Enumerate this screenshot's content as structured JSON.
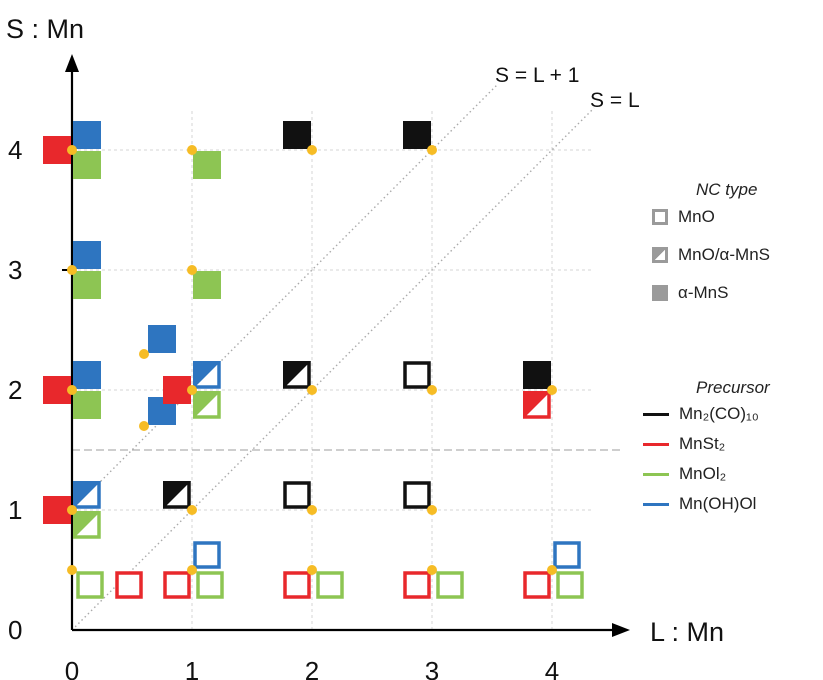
{
  "chart_data": {
    "type": "scatter",
    "title": "",
    "xlabel": "L : Mn",
    "ylabel": "S : Mn",
    "xlim": [
      0,
      4.5
    ],
    "ylim": [
      0,
      4.5
    ],
    "xticks": [
      "0",
      "1",
      "2",
      "3",
      "4"
    ],
    "yticks": [
      "0",
      "1",
      "2",
      "3",
      "4"
    ],
    "grid": true,
    "diagonal_labels": [
      "S = L + 1",
      "S = L"
    ],
    "colors": {
      "Mn2(CO)10": "#111111",
      "MnSt2": "#e8282c",
      "MnOl2": "#8dc553",
      "Mn(OH)Ol": "#2e75c0",
      "dot": "#f6bc25",
      "nc_legend": "#9a9a9a"
    },
    "nc_type_legend": {
      "title": "NC type",
      "items": [
        {
          "label": "MnO",
          "style": "open"
        },
        {
          "label": "MnO/α-MnS",
          "style": "half"
        },
        {
          "label": "α-MnS",
          "style": "filled"
        }
      ]
    },
    "precursor_legend": {
      "title": "Precursor",
      "items": [
        {
          "label": "Mn₂(CO)₁₀",
          "key": "Mn2(CO)10"
        },
        {
          "label": "MnSt₂",
          "key": "MnSt2"
        },
        {
          "label": "MnOl₂",
          "key": "MnOl2"
        },
        {
          "label": "Mn(OH)Ol",
          "key": "Mn(OH)Ol"
        }
      ]
    },
    "points": [
      {
        "L": 0,
        "S": 4,
        "precursor": "MnSt2",
        "nc": "filled"
      },
      {
        "L": 0,
        "S": 4,
        "precursor": "Mn(OH)Ol",
        "nc": "filled"
      },
      {
        "L": 0,
        "S": 4,
        "precursor": "MnOl2",
        "nc": "filled"
      },
      {
        "L": 1,
        "S": 4,
        "precursor": "MnOl2",
        "nc": "filled"
      },
      {
        "L": 2,
        "S": 4,
        "precursor": "Mn2(CO)10",
        "nc": "filled"
      },
      {
        "L": 3,
        "S": 4,
        "precursor": "Mn2(CO)10",
        "nc": "filled"
      },
      {
        "L": 0,
        "S": 3,
        "precursor": "Mn(OH)Ol",
        "nc": "filled"
      },
      {
        "L": 0,
        "S": 3,
        "precursor": "MnOl2",
        "nc": "filled"
      },
      {
        "L": 1,
        "S": 3,
        "precursor": "MnOl2",
        "nc": "filled"
      },
      {
        "L": 0.6,
        "S": 2.3,
        "precursor": "Mn(OH)Ol",
        "nc": "filled"
      },
      {
        "L": 0,
        "S": 2,
        "precursor": "MnSt2",
        "nc": "filled"
      },
      {
        "L": 0,
        "S": 2,
        "precursor": "Mn(OH)Ol",
        "nc": "filled"
      },
      {
        "L": 0,
        "S": 2,
        "precursor": "MnOl2",
        "nc": "filled"
      },
      {
        "L": 0.6,
        "S": 1.7,
        "precursor": "Mn(OH)Ol",
        "nc": "filled"
      },
      {
        "L": 1,
        "S": 2,
        "precursor": "MnSt2",
        "nc": "filled"
      },
      {
        "L": 1,
        "S": 2,
        "precursor": "Mn(OH)Ol",
        "nc": "half"
      },
      {
        "L": 1,
        "S": 2,
        "precursor": "MnOl2",
        "nc": "half"
      },
      {
        "L": 2,
        "S": 2,
        "precursor": "Mn2(CO)10",
        "nc": "half"
      },
      {
        "L": 3,
        "S": 2,
        "precursor": "Mn2(CO)10",
        "nc": "open"
      },
      {
        "L": 4,
        "S": 2,
        "precursor": "Mn2(CO)10",
        "nc": "filled"
      },
      {
        "L": 4,
        "S": 2,
        "precursor": "MnSt2",
        "nc": "half"
      },
      {
        "L": 0,
        "S": 1,
        "precursor": "MnSt2",
        "nc": "filled"
      },
      {
        "L": 0,
        "S": 1,
        "precursor": "Mn(OH)Ol",
        "nc": "half"
      },
      {
        "L": 0,
        "S": 1,
        "precursor": "MnOl2",
        "nc": "half"
      },
      {
        "L": 1,
        "S": 1,
        "precursor": "Mn2(CO)10",
        "nc": "half"
      },
      {
        "L": 2,
        "S": 1,
        "precursor": "Mn2(CO)10",
        "nc": "open"
      },
      {
        "L": 3,
        "S": 1,
        "precursor": "Mn2(CO)10",
        "nc": "open"
      },
      {
        "L": 0,
        "S": 0.5,
        "precursor": "MnOl2",
        "nc": "open"
      },
      {
        "L": 0.6,
        "S": 0.5,
        "precursor": "MnSt2",
        "nc": "open"
      },
      {
        "L": 1,
        "S": 0.5,
        "precursor": "MnSt2",
        "nc": "open"
      },
      {
        "L": 1,
        "S": 0.5,
        "precursor": "Mn(OH)Ol",
        "nc": "open"
      },
      {
        "L": 1,
        "S": 0.5,
        "precursor": "MnOl2",
        "nc": "open"
      },
      {
        "L": 2,
        "S": 0.5,
        "precursor": "MnSt2",
        "nc": "open"
      },
      {
        "L": 2,
        "S": 0.5,
        "precursor": "MnOl2",
        "nc": "open"
      },
      {
        "L": 3,
        "S": 0.5,
        "precursor": "MnSt2",
        "nc": "open"
      },
      {
        "L": 3,
        "S": 0.5,
        "precursor": "MnOl2",
        "nc": "open"
      },
      {
        "L": 4,
        "S": 0.5,
        "precursor": "MnSt2",
        "nc": "open"
      },
      {
        "L": 4,
        "S": 0.5,
        "precursor": "Mn(OH)Ol",
        "nc": "open"
      },
      {
        "L": 4,
        "S": 0.5,
        "precursor": "MnOl2",
        "nc": "open"
      }
    ],
    "dots": [
      [
        0,
        4
      ],
      [
        1,
        4
      ],
      [
        2,
        4
      ],
      [
        3,
        4
      ],
      [
        0,
        3
      ],
      [
        1,
        3
      ],
      [
        0.6,
        2.3
      ],
      [
        0,
        2
      ],
      [
        1,
        2
      ],
      [
        2,
        2
      ],
      [
        3,
        2
      ],
      [
        4,
        2
      ],
      [
        0.6,
        1.7
      ],
      [
        0,
        1
      ],
      [
        1,
        1
      ],
      [
        2,
        1
      ],
      [
        3,
        1
      ],
      [
        0,
        0.5
      ],
      [
        1,
        0.5
      ],
      [
        2,
        0.5
      ],
      [
        3,
        0.5
      ],
      [
        4,
        0.5
      ]
    ]
  }
}
